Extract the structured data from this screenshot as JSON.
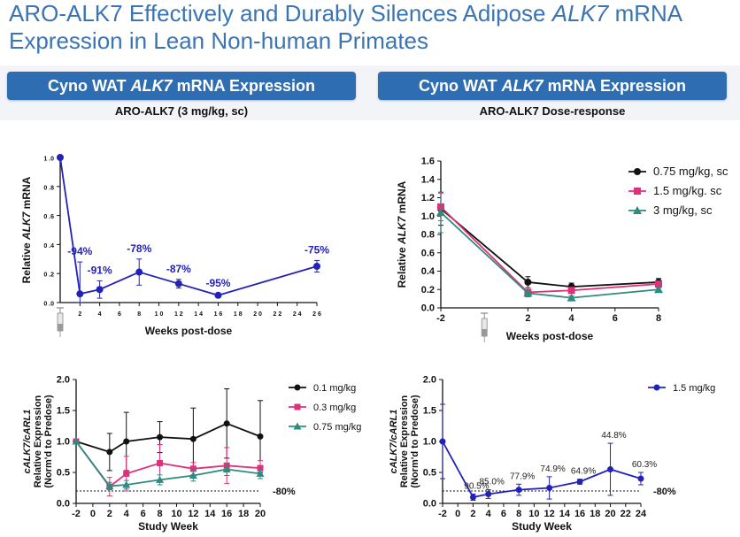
{
  "page": {
    "title_line1_before": "ARO-ALK7 Effectively and Durably Silences Adipose ",
    "title_line1_gene": "ALK7",
    "title_line1_after": " mRNA",
    "title_line2": "Expression in Lean Non-human Primates"
  },
  "panels": [
    {
      "header_before": "Cyno WAT ",
      "header_gene": "ALK7",
      "header_after": " mRNA Expression",
      "subtitle": "ARO-ALK7 (3 mg/kg, sc)"
    },
    {
      "header_before": "Cyno WAT ",
      "header_gene": "ALK7",
      "header_after": " mRNA Expression",
      "subtitle": "ARO-ALK7 Dose-response"
    }
  ],
  "colors": {
    "title": "#3a74b3",
    "header_bg": "#2f6db2",
    "navy": "#2222bb",
    "black": "#111111",
    "pink": "#e0307a",
    "teal": "#2e8b80"
  },
  "chart_data": [
    {
      "id": "top-left",
      "type": "line",
      "title": "ARO-ALK7 (3 mg/kg, sc)",
      "xlabel": "Weeks post-dose",
      "ylabel_before": "Relative ",
      "ylabel_gene": "ALK7",
      "ylabel_after": " mRNA",
      "xlim": [
        0,
        26
      ],
      "ylim": [
        0,
        1.0
      ],
      "xticks": [
        2,
        4,
        6,
        8,
        10,
        12,
        14,
        16,
        18,
        20,
        22,
        24,
        26
      ],
      "xtick_labels": [
        "2",
        "4",
        "6",
        "8",
        "1 0",
        "1 2",
        "1 4",
        "1 6",
        "1 8",
        "2 0",
        "2 2",
        "2 4",
        "2 6"
      ],
      "yticks": [
        0,
        0.2,
        0.4,
        0.6,
        0.8,
        1.0
      ],
      "ytick_labels": [
        "0 .0",
        "0 .2",
        "0 .4",
        "0 .6",
        "0 .8",
        "1 .0"
      ],
      "series": [
        {
          "color": "#2222bb",
          "x": [
            0,
            2,
            4,
            8,
            12,
            16,
            26
          ],
          "y": [
            1.0,
            0.06,
            0.09,
            0.21,
            0.13,
            0.05,
            0.25
          ],
          "err": [
            0,
            0.22,
            0.06,
            0.09,
            0.03,
            0.01,
            0.04
          ],
          "labels": [
            "",
            "-94%",
            "-91%",
            "-78%",
            "-87%",
            "-95%",
            "-75%"
          ]
        }
      ],
      "dose_marker_x": 0
    },
    {
      "id": "top-right",
      "type": "line",
      "title": "ARO-ALK7 Dose-response",
      "xlabel": "Weeks post-dose",
      "ylabel_before": "Relative ",
      "ylabel_gene": "ALK7",
      "ylabel_after": " mRNA",
      "xlim": [
        -2,
        8
      ],
      "ylim": [
        0,
        1.6
      ],
      "xticks": [
        -2,
        2,
        4,
        6,
        8
      ],
      "xtick_labels": [
        "-2",
        "2",
        "4",
        "6",
        "8"
      ],
      "yticks": [
        0,
        0.2,
        0.4,
        0.6,
        0.8,
        1.0,
        1.2,
        1.4,
        1.6
      ],
      "ytick_labels": [
        "0.0",
        "0.2",
        "0.4",
        "0.6",
        "0.8",
        "1.0",
        "1.2",
        "1.4",
        "1.6"
      ],
      "legend": "right",
      "series": [
        {
          "name": "0.75 mg/kg, sc",
          "color": "#111111",
          "marker": "circle",
          "x": [
            -2,
            2,
            4,
            8
          ],
          "y": [
            1.08,
            0.28,
            0.23,
            0.28
          ],
          "err": [
            0.18,
            0.06,
            0.04,
            0.04
          ]
        },
        {
          "name": "1.5 mg/kg. sc",
          "color": "#e0307a",
          "marker": "square",
          "x": [
            -2,
            2,
            4,
            8
          ],
          "y": [
            1.1,
            0.17,
            0.19,
            0.26
          ],
          "err": [
            0.15,
            0.05,
            0.03,
            0.03
          ]
        },
        {
          "name": "3 mg/kg, sc",
          "color": "#2e8b80",
          "marker": "triangle",
          "x": [
            -2,
            2,
            4,
            8
          ],
          "y": [
            1.04,
            0.16,
            0.11,
            0.2
          ],
          "err": [
            0.22,
            0.04,
            0.02,
            0.02
          ]
        }
      ],
      "dose_marker_x": 0
    },
    {
      "id": "bottom-left",
      "type": "line",
      "xlabel": "Study Week",
      "ylabel_line1_gene": "cALK7/cARL1",
      "ylabel_line2": "Relative Expression",
      "ylabel_line3": "(Norm'd to Predose)",
      "xlim": [
        -2,
        20
      ],
      "ylim": [
        0,
        2.0
      ],
      "xticks": [
        -2,
        0,
        2,
        4,
        6,
        8,
        10,
        12,
        14,
        16,
        18,
        20
      ],
      "xtick_labels": [
        "-2",
        "0",
        "2",
        "4",
        "6",
        "8",
        "10",
        "12",
        "14",
        "16",
        "18",
        "20"
      ],
      "yticks": [
        0,
        0.5,
        1.0,
        1.5,
        2.0
      ],
      "ytick_labels": [
        "0.0",
        "0.5",
        "1.0",
        "1.5",
        "2.0"
      ],
      "reference_line": {
        "y": 0.2,
        "label": "-80%"
      },
      "legend": "right",
      "series": [
        {
          "name": "0.1 mg/kg",
          "color": "#111111",
          "marker": "circle",
          "x": [
            -2,
            2,
            4,
            8,
            12,
            16,
            20
          ],
          "y": [
            1.0,
            0.83,
            1.0,
            1.07,
            1.04,
            1.29,
            1.08
          ],
          "err": [
            0,
            0.3,
            0.47,
            0.25,
            0.5,
            0.56,
            0.58
          ]
        },
        {
          "name": "0.3 mg/kg",
          "color": "#e0307a",
          "marker": "square",
          "x": [
            -2,
            2,
            4,
            8,
            12,
            16,
            20
          ],
          "y": [
            1.0,
            0.27,
            0.48,
            0.65,
            0.56,
            0.61,
            0.57
          ],
          "err": [
            0,
            0.15,
            0.28,
            0.3,
            0.1,
            0.29,
            0.12
          ]
        },
        {
          "name": "0.75 mg/kg",
          "color": "#2e8b80",
          "marker": "triangle",
          "x": [
            -2,
            2,
            4,
            8,
            12,
            16,
            20
          ],
          "y": [
            1.0,
            0.28,
            0.3,
            0.38,
            0.45,
            0.55,
            0.48
          ],
          "err": [
            0,
            0.06,
            0.07,
            0.08,
            0.09,
            0.1,
            0.08
          ]
        }
      ]
    },
    {
      "id": "bottom-right",
      "type": "line",
      "xlabel": "Study Week",
      "ylabel_line1_gene": "cALK7/cARL1",
      "ylabel_line2": "Relative Expression",
      "ylabel_line3": "(Norm'd to Predose)",
      "xlim": [
        -2,
        24
      ],
      "ylim": [
        0,
        2.0
      ],
      "xticks": [
        -2,
        0,
        2,
        4,
        6,
        8,
        10,
        12,
        14,
        16,
        18,
        20,
        22,
        24
      ],
      "xtick_labels": [
        "-2",
        "0",
        "2",
        "4",
        "6",
        "8",
        "10",
        "12",
        "14",
        "16",
        "18",
        "20",
        "22",
        "24"
      ],
      "yticks": [
        0,
        0.5,
        1.0,
        1.5,
        2.0
      ],
      "ytick_labels": [
        "0.0",
        "0.5",
        "1.0",
        "1.5",
        "2.0"
      ],
      "reference_line": {
        "y": 0.2,
        "label": "-80%"
      },
      "legend": "top-right",
      "series": [
        {
          "name": "1.5 mg/kg",
          "color": "#2222bb",
          "marker": "circle",
          "x": [
            -2,
            2,
            4,
            8,
            12,
            16,
            20,
            24
          ],
          "y": [
            1.0,
            0.1,
            0.15,
            0.22,
            0.25,
            0.35,
            0.55,
            0.4
          ],
          "err": [
            0.6,
            0.05,
            0.07,
            0.09,
            0.18,
            0.04,
            0.42,
            0.1
          ],
          "labels": [
            "",
            "90.5%",
            "85.0%",
            "77.9%",
            "74.9%",
            "64.9%",
            "44.8%",
            "60.3%"
          ]
        }
      ]
    }
  ]
}
